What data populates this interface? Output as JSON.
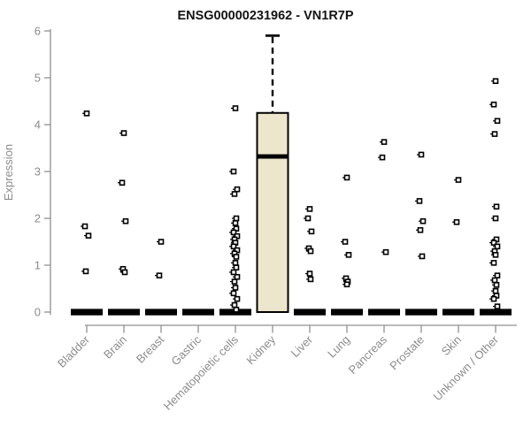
{
  "chart_data": {
    "type": "boxplot",
    "title": "ENSG00000231962 - VN1R7P",
    "ylabel": "Expression",
    "xlabel": "",
    "ylim": [
      0,
      6
    ],
    "yticks": [
      0,
      1,
      2,
      3,
      4,
      5,
      6
    ],
    "grid": false,
    "legend": false,
    "categories": [
      "Bladder",
      "Brain",
      "Breast",
      "Gastric",
      "Hematopoietic cells",
      "Kidney",
      "Liver",
      "Lung",
      "Pancreas",
      "Prostate",
      "Skin",
      "Unknown / Other"
    ],
    "boxes": [
      {
        "category": "Bladder",
        "min": 0,
        "q1": 0,
        "median": 0,
        "q3": 0,
        "max": 0
      },
      {
        "category": "Brain",
        "min": 0,
        "q1": 0,
        "median": 0,
        "q3": 0,
        "max": 0
      },
      {
        "category": "Breast",
        "min": 0,
        "q1": 0,
        "median": 0,
        "q3": 0,
        "max": 0
      },
      {
        "category": "Gastric",
        "min": 0,
        "q1": 0,
        "median": 0,
        "q3": 0,
        "max": 0
      },
      {
        "category": "Hematopoietic cells",
        "min": 0,
        "q1": 0,
        "median": 0,
        "q3": 0,
        "max": 0
      },
      {
        "category": "Kidney",
        "min": 0,
        "q1": 0,
        "median": 3.32,
        "q3": 4.25,
        "max": 5.9
      },
      {
        "category": "Liver",
        "min": 0,
        "q1": 0,
        "median": 0,
        "q3": 0,
        "max": 0
      },
      {
        "category": "Lung",
        "min": 0,
        "q1": 0,
        "median": 0,
        "q3": 0,
        "max": 0
      },
      {
        "category": "Pancreas",
        "min": 0,
        "q1": 0,
        "median": 0,
        "q3": 0,
        "max": 0
      },
      {
        "category": "Prostate",
        "min": 0,
        "q1": 0,
        "median": 0,
        "q3": 0,
        "max": 0
      },
      {
        "category": "Skin",
        "min": 0,
        "q1": 0,
        "median": 0,
        "q3": 0,
        "max": 0
      },
      {
        "category": "Unknown / Other",
        "min": 0,
        "q1": 0,
        "median": 0,
        "q3": 0,
        "max": 0
      }
    ],
    "outlier_points": [
      {
        "category": "Bladder",
        "values": [
          4.24,
          1.83,
          1.63,
          0.87
        ]
      },
      {
        "category": "Brain",
        "values": [
          3.82,
          2.76,
          1.94,
          0.92,
          0.85
        ]
      },
      {
        "category": "Breast",
        "values": [
          1.5,
          0.78
        ]
      },
      {
        "category": "Gastric",
        "values": []
      },
      {
        "category": "Hematopoietic cells",
        "values": [
          4.35,
          3.0,
          2.62,
          2.52,
          2.0,
          1.9,
          1.78,
          1.7,
          1.62,
          1.55,
          1.48,
          1.4,
          1.32,
          1.25,
          1.18,
          1.05,
          0.95,
          0.85,
          0.75,
          0.65,
          0.52,
          0.4,
          0.28,
          0.15,
          0.05
        ]
      },
      {
        "category": "Kidney",
        "values": []
      },
      {
        "category": "Liver",
        "values": [
          2.2,
          2.0,
          1.72,
          1.36,
          1.3,
          0.82,
          0.7
        ]
      },
      {
        "category": "Lung",
        "values": [
          2.87,
          1.5,
          1.22,
          0.72,
          0.65,
          0.59
        ]
      },
      {
        "category": "Pancreas",
        "values": [
          3.63,
          3.3,
          1.28
        ]
      },
      {
        "category": "Prostate",
        "values": [
          3.36,
          2.37,
          1.94,
          1.75,
          1.19
        ]
      },
      {
        "category": "Skin",
        "values": [
          2.82,
          1.92
        ]
      },
      {
        "category": "Unknown / Other",
        "values": [
          4.93,
          4.43,
          4.08,
          3.8,
          2.25,
          2.0,
          1.55,
          1.48,
          1.4,
          1.3,
          1.22,
          1.05,
          0.78,
          0.68,
          0.58,
          0.45,
          0.35,
          0.28,
          0.12
        ]
      }
    ],
    "colors": {
      "box_fill": "#ece6cc",
      "box_stroke": "#000000",
      "median": "#000000",
      "collapsed_bar": "#000000",
      "point_stroke": "#000000",
      "axis_line": "#909090",
      "tick_label": "#8c8c8c",
      "title": "#141414"
    }
  }
}
